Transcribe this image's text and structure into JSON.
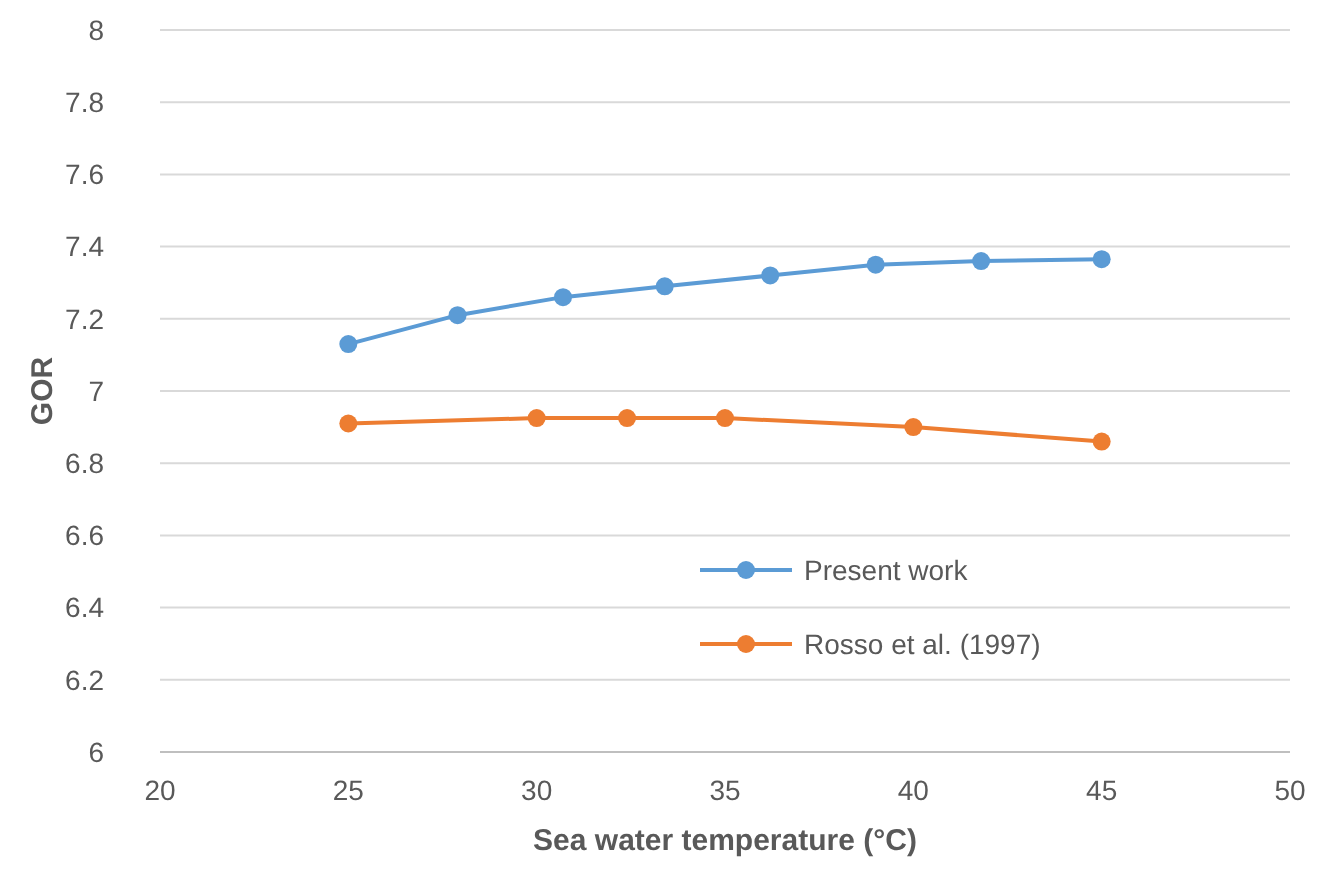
{
  "chart_data": {
    "type": "line",
    "xlabel": "Sea water temperature (°C)",
    "ylabel": "GOR",
    "xlim": [
      20,
      50
    ],
    "xticks": [
      20,
      25,
      30,
      35,
      40,
      45,
      50
    ],
    "ylim": [
      6,
      8
    ],
    "yticks": [
      6,
      6.2,
      6.4,
      6.6,
      6.8,
      7,
      7.2,
      7.4,
      7.6,
      7.8,
      8
    ],
    "grid": "y",
    "legend": "right",
    "marker": "circle",
    "line_style": "solid",
    "series": [
      {
        "name": "Present work",
        "color": "#5b9bd5",
        "x": [
          25,
          27.9,
          30.7,
          33.4,
          36.2,
          39,
          41.8,
          45
        ],
        "values": [
          7.13,
          7.21,
          7.26,
          7.29,
          7.32,
          7.35,
          7.36,
          7.365
        ]
      },
      {
        "name": "Rosso et al. (1997)",
        "color": "#ed7d31",
        "x": [
          25,
          30,
          32.4,
          35,
          40,
          45
        ],
        "values": [
          6.91,
          6.925,
          6.925,
          6.925,
          6.9,
          6.86
        ]
      }
    ]
  }
}
